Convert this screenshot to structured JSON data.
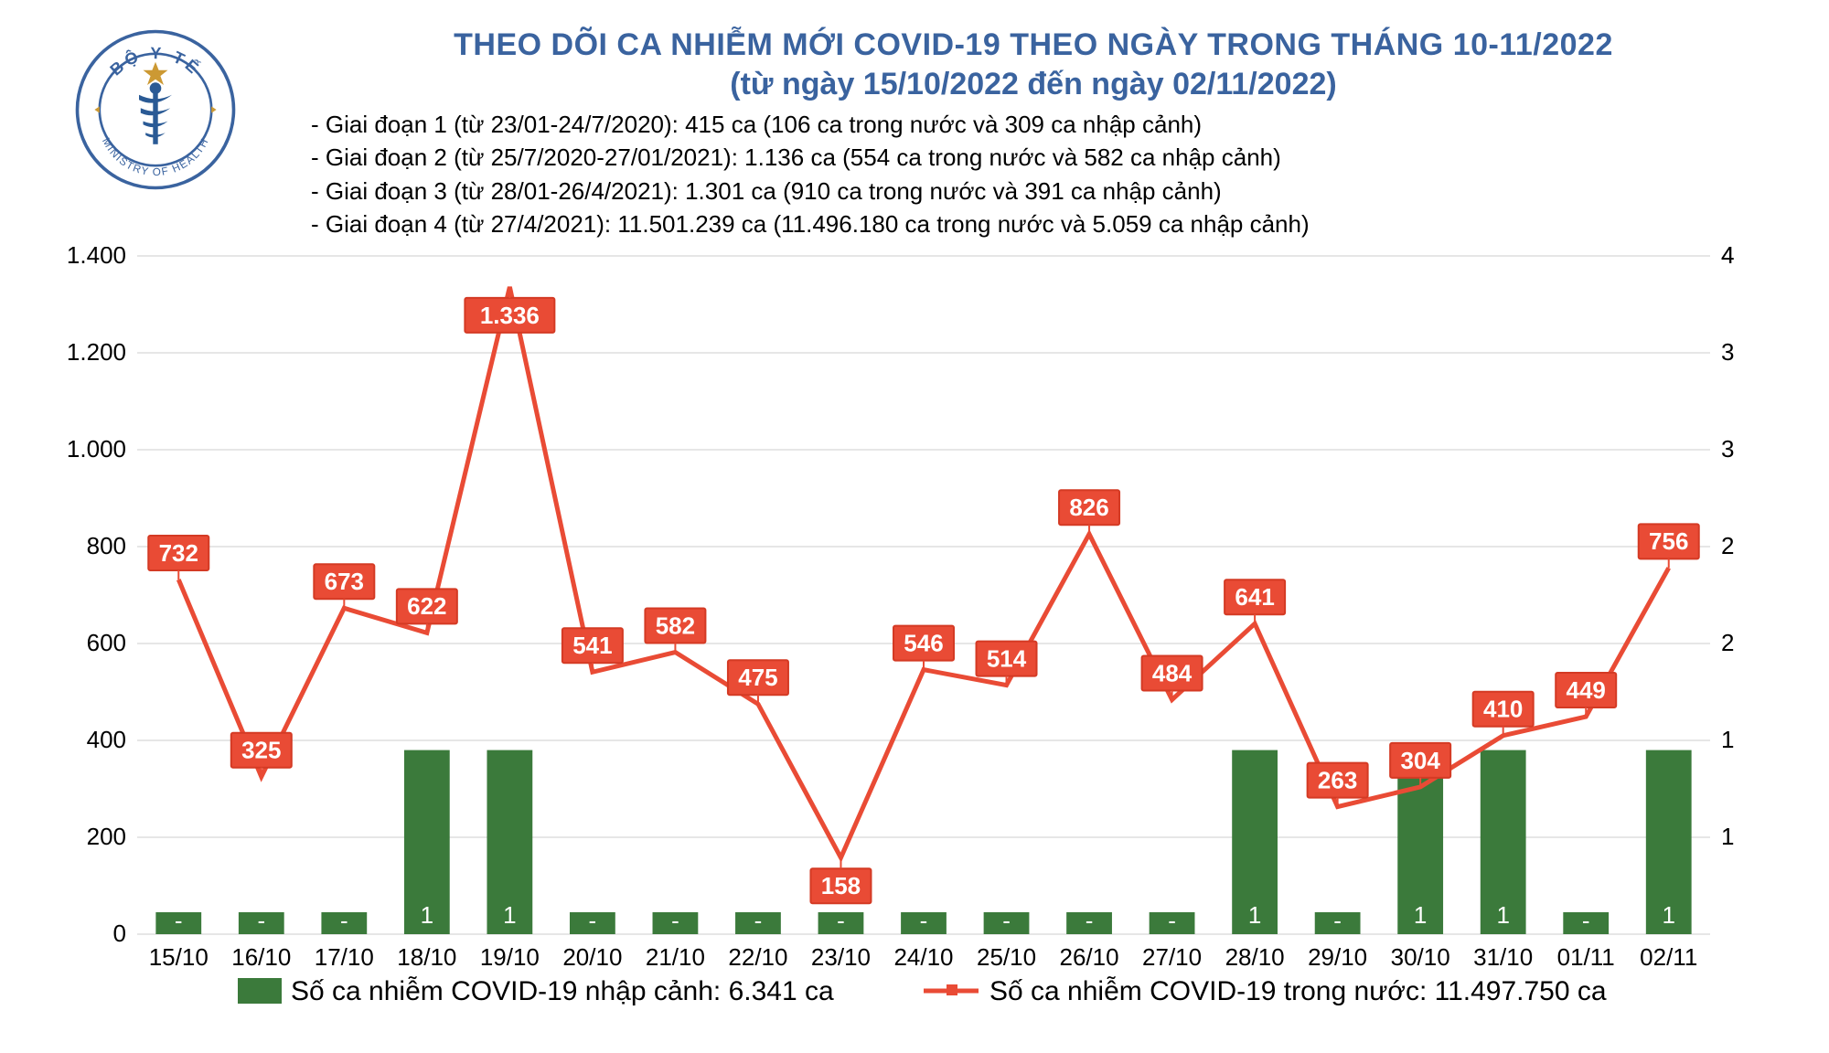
{
  "title": {
    "line1": "THEO DÕI CA NHIỄM MỚI COVID-19 THEO NGÀY TRONG THÁNG 10-11/2022",
    "line2": "(từ ngày 15/10/2022 đến ngày 02/11/2022)",
    "color": "#3a639f",
    "font_size": 34
  },
  "subtitle_lines": [
    "- Giai đoạn 1 (từ 23/01-24/7/2020): 415 ca (106 ca trong nước và 309 ca nhập cảnh)",
    "- Giai đoạn 2 (từ 25/7/2020-27/01/2021): 1.136 ca (554 ca trong nước và 582 ca nhập cảnh)",
    "- Giai đoạn 3 (từ 28/01-26/4/2021): 1.301 ca (910 ca trong nước và 391 ca nhập cảnh)",
    "- Giai đoạn 4 (từ 27/4/2021): 11.501.239 ca (11.496.180 ca trong nước và 5.059 ca nhập cảnh)"
  ],
  "subtitle_style": {
    "color": "#000000",
    "font_size": 26
  },
  "logo": {
    "outer_text_top": "BỘ Y TẾ",
    "outer_text_bottom": "MINISTRY OF HEALTH",
    "ring_color": "#3a639f",
    "star_color": "#cc9933",
    "staff_color": "#2a5a95"
  },
  "chart": {
    "type": "bar+line",
    "categories": [
      "15/10",
      "16/10",
      "17/10",
      "18/10",
      "19/10",
      "20/10",
      "21/10",
      "22/10",
      "23/10",
      "24/10",
      "25/10",
      "26/10",
      "27/10",
      "28/10",
      "29/10",
      "30/10",
      "31/10",
      "01/11",
      "02/11"
    ],
    "line_series": {
      "name": "Số ca nhiễm COVID-19 trong nước",
      "total_label": "11.497.750 ca",
      "values": [
        732,
        325,
        673,
        622,
        1336,
        541,
        582,
        475,
        158,
        546,
        514,
        826,
        484,
        641,
        263,
        304,
        410,
        449,
        756
      ],
      "color": "#e94b35",
      "label_bg": "#e94b35",
      "label_border": "#d43a24",
      "label_text_color": "#ffffff",
      "line_width": 5,
      "marker": "none"
    },
    "bar_series": {
      "name": "Số ca nhiễm COVID-19 nhập cảnh",
      "total_label": "6.341 ca",
      "values": [
        0,
        0,
        0,
        1,
        1,
        0,
        0,
        0,
        0,
        0,
        0,
        0,
        0,
        1,
        0,
        1,
        1,
        0,
        1
      ],
      "display_labels": [
        "-",
        "-",
        "-",
        "1",
        "1",
        "-",
        "-",
        "-",
        "-",
        "-",
        "-",
        "-",
        "-",
        "1",
        "-",
        "1",
        "1",
        "-",
        "1"
      ],
      "color": "#3b7a3b",
      "bar_width_ratio": 0.55,
      "label_text_color": "#ffffff"
    },
    "y_axis_left": {
      "min": 0,
      "max": 1400,
      "step": 200,
      "ticks": [
        0,
        200,
        400,
        600,
        800,
        1000,
        1200,
        1400
      ],
      "tick_labels": [
        "0",
        "200",
        "400",
        "600",
        "800",
        "1.000",
        "1.200",
        "1.400"
      ],
      "font_size": 26
    },
    "y_axis_right": {
      "min": 0,
      "max": 4,
      "step": 1,
      "ticks": [
        1,
        1,
        2,
        2,
        3,
        3,
        4,
        4
      ],
      "positions_on_left_scale": [
        200,
        400,
        600,
        800,
        1000,
        1200,
        1400,
        1500
      ],
      "font_size": 26
    },
    "grid_color": "#cccccc",
    "background_color": "#ffffff",
    "x_label_font_size": 26,
    "legend": {
      "bar_label": "Số ca nhiễm COVID-19 nhập cảnh: 6.341 ca",
      "line_label": "Số ca nhiễm COVID-19 trong nước: 11.497.750 ca",
      "font_size": 30
    }
  }
}
